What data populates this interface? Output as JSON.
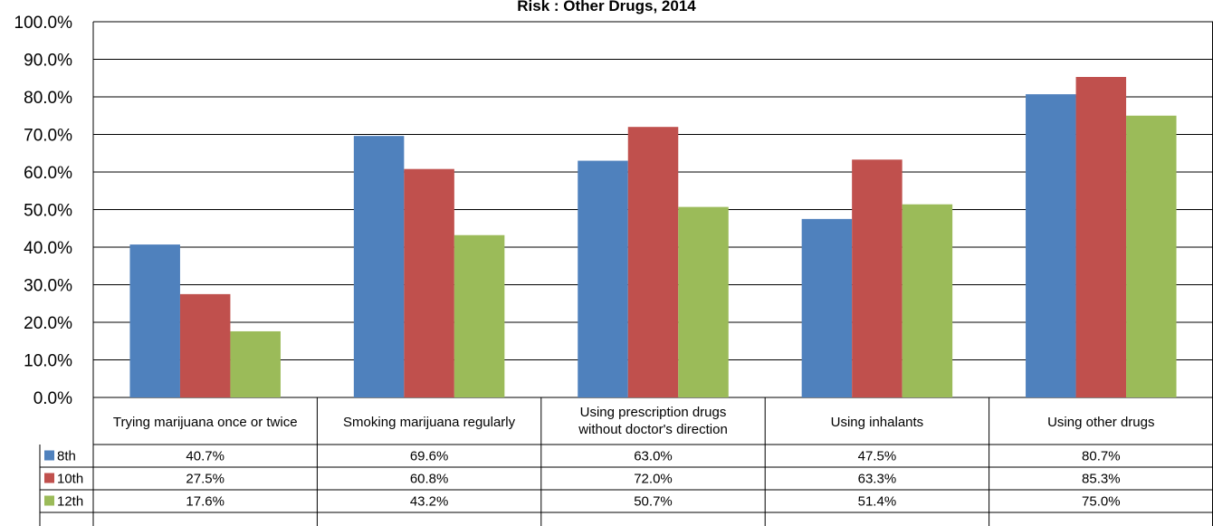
{
  "chart_data": {
    "type": "bar",
    "title": "Risk : Other Drugs, 2014",
    "categories": [
      "Trying marijuana once or twice",
      "Smoking marijuana regularly",
      "Using prescription drugs without doctor's direction",
      "Using inhalants",
      "Using other drugs"
    ],
    "series": [
      {
        "name": "8th",
        "color": "#4F81BD",
        "values": [
          40.7,
          69.6,
          63.0,
          47.5,
          80.7
        ],
        "labels": [
          "40.7%",
          "69.6%",
          "63.0%",
          "47.5%",
          "80.7%"
        ]
      },
      {
        "name": "10th",
        "color": "#C0504D",
        "values": [
          27.5,
          60.8,
          72.0,
          63.3,
          85.3
        ],
        "labels": [
          "27.5%",
          "60.8%",
          "72.0%",
          "63.3%",
          "85.3%"
        ]
      },
      {
        "name": "12th",
        "color": "#9BBB59",
        "values": [
          17.6,
          43.2,
          50.7,
          51.4,
          75.0
        ],
        "labels": [
          "17.6%",
          "43.2%",
          "50.7%",
          "51.4%",
          "75.0%"
        ]
      }
    ],
    "ylim": [
      0,
      100
    ],
    "yticks": [
      "0.0%",
      "10.0%",
      "20.0%",
      "30.0%",
      "40.0%",
      "50.0%",
      "60.0%",
      "70.0%",
      "80.0%",
      "90.0%",
      "100.0%"
    ],
    "gridlines": true,
    "legend": "data-table-left"
  }
}
